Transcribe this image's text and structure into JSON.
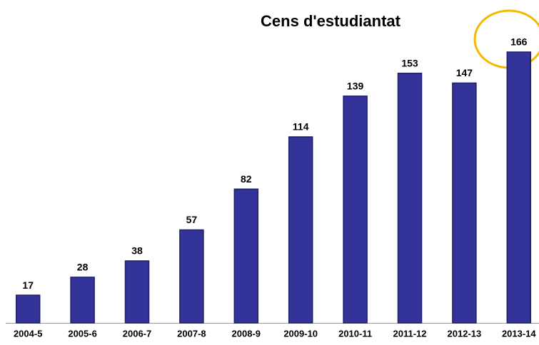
{
  "chart_data": {
    "type": "bar",
    "title": "Cens d'estudiantat",
    "categories": [
      "2004-5",
      "2005-6",
      "2006-7",
      "2007-8",
      "2008-9",
      "2009-10",
      "2010-11",
      "2011-12",
      "2012-13",
      "2013-14"
    ],
    "values": [
      17,
      28,
      38,
      57,
      82,
      114,
      139,
      153,
      147,
      166
    ],
    "color": "#333399"
  }
}
